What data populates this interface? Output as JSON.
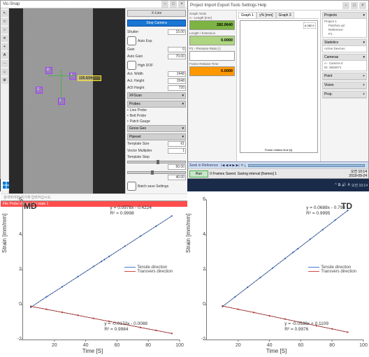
{
  "left_app": {
    "title": "Vic-Snap",
    "tool_icons": [
      "↖",
      "□",
      "○",
      "╳",
      "+",
      "A",
      "⋯",
      "⌂",
      "⚙"
    ],
    "markers": {
      "m1": "0",
      "m2": "1",
      "m3": "2",
      "m4": "3",
      "readout": "125.0/34"
    },
    "panel": {
      "mode": "X-Line",
      "stop_cam": "Stop Camera",
      "shutter": "Shutter",
      "shutter_val": "15.00",
      "auto_exp": "Auto Exp.",
      "gain": "Gain",
      "gain_val": "0",
      "auto_gain": "Auto Gain",
      "auto_gain_val": "70.00",
      "high_dr": "High DOF",
      "act_width": "Act. Width",
      "act_width_val": "2448",
      "act_height": "Act. Height",
      "act_height_val": "2048",
      "aoi_height": "AOI Height",
      "aoi_height_val": "720",
      "sec_size": "XFScan",
      "sec_probes": "Probes",
      "line_probe": "Line Probe",
      "belt_probe": "Belt Probe",
      "patch_gauge": "Patch Gauge",
      "sec_gross": "Gross Geo",
      "sec_pipeset": "Pipeset",
      "template_size": "Template Size",
      "template_size_val": "61",
      "vector_mult": "Vector Multiplier",
      "vector_mult_val": "1",
      "vector_step": "Template Step",
      "slider1_val": "50.00",
      "slider2_val": "40.00",
      "batch_save": "Batch save Settings",
      "apply": "Apply"
    },
    "status": "File Probe changed to state 1"
  },
  "right_app": {
    "menu": "Project   Import   Export   Tools   Settings   Help",
    "graph_header": "Graph Tools",
    "meas": {
      "a_label": "A - Length [mm]",
      "a_val": "282.0640",
      "l_label": "Length / Extension",
      "l_val": "0.0000",
      "p_label": "P1 - Pressure Ratio [-]",
      "p_val": " ",
      "fr_label": "Frame Relative Time",
      "fr_val": "0.0000"
    },
    "graph": {
      "tab1": "Graph 1",
      "tab2": "y% [mm]",
      "tab3": "Graph 3",
      "legend": "A 282.0",
      "xaxis": "Frame relative time [s]",
      "yaxis": "Length [mm]"
    },
    "props": {
      "projects_h": "Projects",
      "proj1": "Project 1",
      "proj1_sub1": "Patches.xyl",
      "proj1_sub2": "Reference",
      "proj1_sub3": "P1",
      "stat_h": "Statistics",
      "stat_body": "Active Devices",
      "cam_h": "Cameras",
      "cam1": "A - Camera 0",
      "cam2": "ID: 3825071",
      "point_h": "Point",
      "vision_h": "Vision",
      "prop_h": "Prop."
    },
    "seek": {
      "label": "Seek in Reference",
      "controls": "|◀ ◀ ■ ▶ ▶| ⟲ ⤓"
    },
    "run": {
      "btn": "Run",
      "frames": "0 Frames Saved. Saving interval [frames] 1"
    },
    "clock": {
      "time": "오전 10:14",
      "date": "2019-09-24"
    }
  },
  "taskbar": {
    "hint": "검색하려면 여기에 입력하십시오.",
    "tray_time": "오전 10:14",
    "tray_date": "2019-09-24"
  },
  "charts": {
    "ylabel": "Strain [mm/mm]",
    "xlabel": "Time [S]",
    "xlim": [
      0,
      100
    ],
    "ylim": [
      -2,
      6
    ],
    "yticks": [
      -2,
      0,
      2,
      4,
      6
    ],
    "xticks": [
      20,
      40,
      60,
      80,
      100
    ],
    "legend_tensile": "Tensile direction",
    "legend_trans": "Transvers direction",
    "color_tensile": "#4a7bd0",
    "color_trans": "#d04a4a",
    "color_fit": "#333333",
    "md": {
      "title": "MD",
      "eq_t1": "y = 0.0578x - 0.4224",
      "eq_t2": "R² = 0.9998",
      "eq_b1": "y = -0.0173x - 0.0088",
      "eq_b2": "R² = 0.9984",
      "tensile_pts": [
        [
          5,
          -0.15
        ],
        [
          15,
          0.45
        ],
        [
          25,
          1.02
        ],
        [
          35,
          1.6
        ],
        [
          45,
          2.18
        ],
        [
          50,
          2.47
        ],
        [
          52,
          2.58
        ],
        [
          55,
          2.76
        ],
        [
          65,
          3.34
        ],
        [
          75,
          3.92
        ],
        [
          85,
          4.49
        ],
        [
          95,
          5.07
        ]
      ],
      "trans_pts": [
        [
          5,
          -0.1
        ],
        [
          15,
          -0.27
        ],
        [
          25,
          -0.44
        ],
        [
          35,
          -0.61
        ],
        [
          45,
          -0.79
        ],
        [
          55,
          -0.96
        ],
        [
          65,
          -1.13
        ],
        [
          75,
          -1.31
        ],
        [
          85,
          -1.48
        ],
        [
          95,
          -1.65
        ]
      ]
    },
    "td": {
      "title": "TD",
      "eq_t1": "y = 0.0688x - 0.798",
      "eq_t2": "R² = 0.9995",
      "eq_b1": "y = -0.0188x + 0.1109",
      "eq_b2": "R² = 0.9976",
      "tensile_pts": [
        [
          10,
          -0.11
        ],
        [
          18,
          0.44
        ],
        [
          26,
          0.99
        ],
        [
          34,
          1.54
        ],
        [
          42,
          2.09
        ],
        [
          50,
          2.64
        ],
        [
          55,
          2.99
        ],
        [
          58,
          3.19
        ],
        [
          66,
          3.74
        ],
        [
          74,
          4.29
        ],
        [
          82,
          4.84
        ],
        [
          90,
          5.39
        ]
      ],
      "trans_pts": [
        [
          10,
          -0.08
        ],
        [
          20,
          -0.27
        ],
        [
          30,
          -0.45
        ],
        [
          40,
          -0.64
        ],
        [
          50,
          -0.83
        ],
        [
          60,
          -1.02
        ],
        [
          70,
          -1.21
        ],
        [
          80,
          -1.39
        ],
        [
          90,
          -1.58
        ]
      ]
    }
  }
}
